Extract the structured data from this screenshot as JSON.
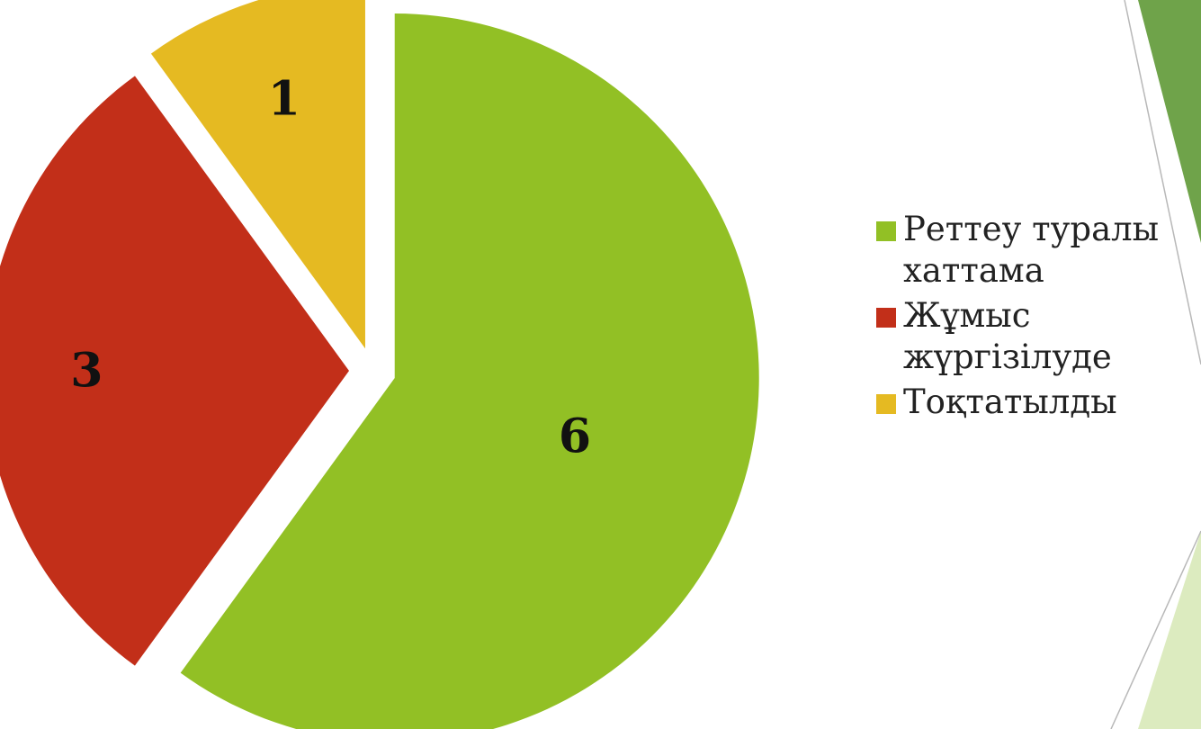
{
  "chart_data": {
    "type": "pie",
    "categories": [
      "Реттеу туралы хаттама",
      "Жұмыс жүргізілуде",
      "Тоқтатылды"
    ],
    "values": [
      6,
      3,
      1
    ],
    "data_labels": [
      "6",
      "3",
      "1"
    ],
    "colors": [
      "#92c025",
      "#c22f19",
      "#e5ba22"
    ],
    "exploded": true,
    "legend_position": "right",
    "title": ""
  },
  "legend": {
    "items": [
      {
        "label": "Реттеу туралы хаттама",
        "color": "#92c025"
      },
      {
        "label": "Жұмыс жүргізілуде",
        "color": "#c22f19"
      },
      {
        "label": "Тоқтатылды",
        "color": "#e5ba22"
      }
    ]
  },
  "decor": {
    "accent_dark": "#6fa34a",
    "accent_light": "#dcebbf",
    "line_color": "#b8b8b8"
  }
}
